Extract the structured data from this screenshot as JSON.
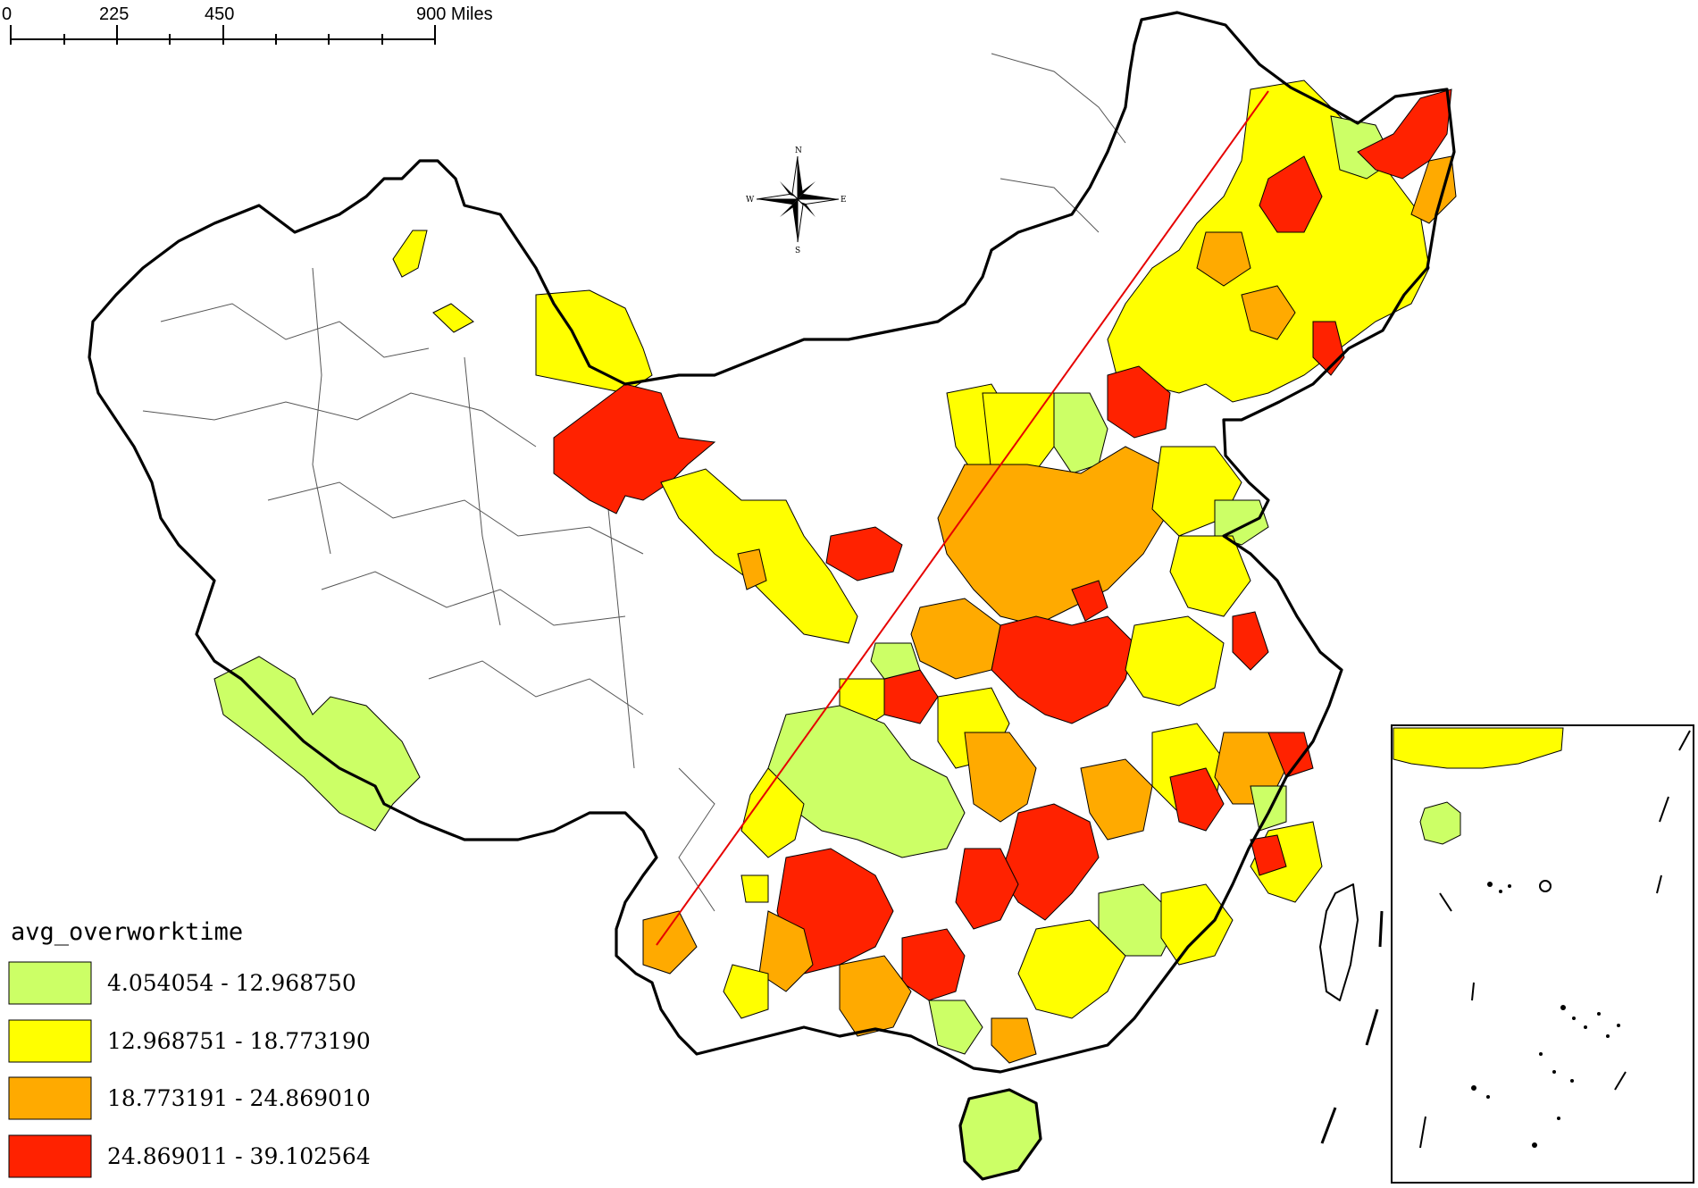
{
  "scale_bar": {
    "ticks": [
      "0",
      "225",
      "450",
      "900 Miles"
    ]
  },
  "compass": {
    "n": "N",
    "s": "S",
    "e": "E",
    "w": "W"
  },
  "legend": {
    "title": "avg_overworktime",
    "items": [
      {
        "label": "4.054054  -  12.968750",
        "color": "#ccff66"
      },
      {
        "label": "12.968751  -  18.773190",
        "color": "#ffff00"
      },
      {
        "label": "18.773191  -  24.869010",
        "color": "#ffaa00"
      },
      {
        "label": "24.869011  -  39.102564",
        "color": "#ff2200"
      }
    ]
  },
  "colors": {
    "no_data": "#ffffff",
    "divide_line": "#e60000",
    "border": "#000000"
  }
}
